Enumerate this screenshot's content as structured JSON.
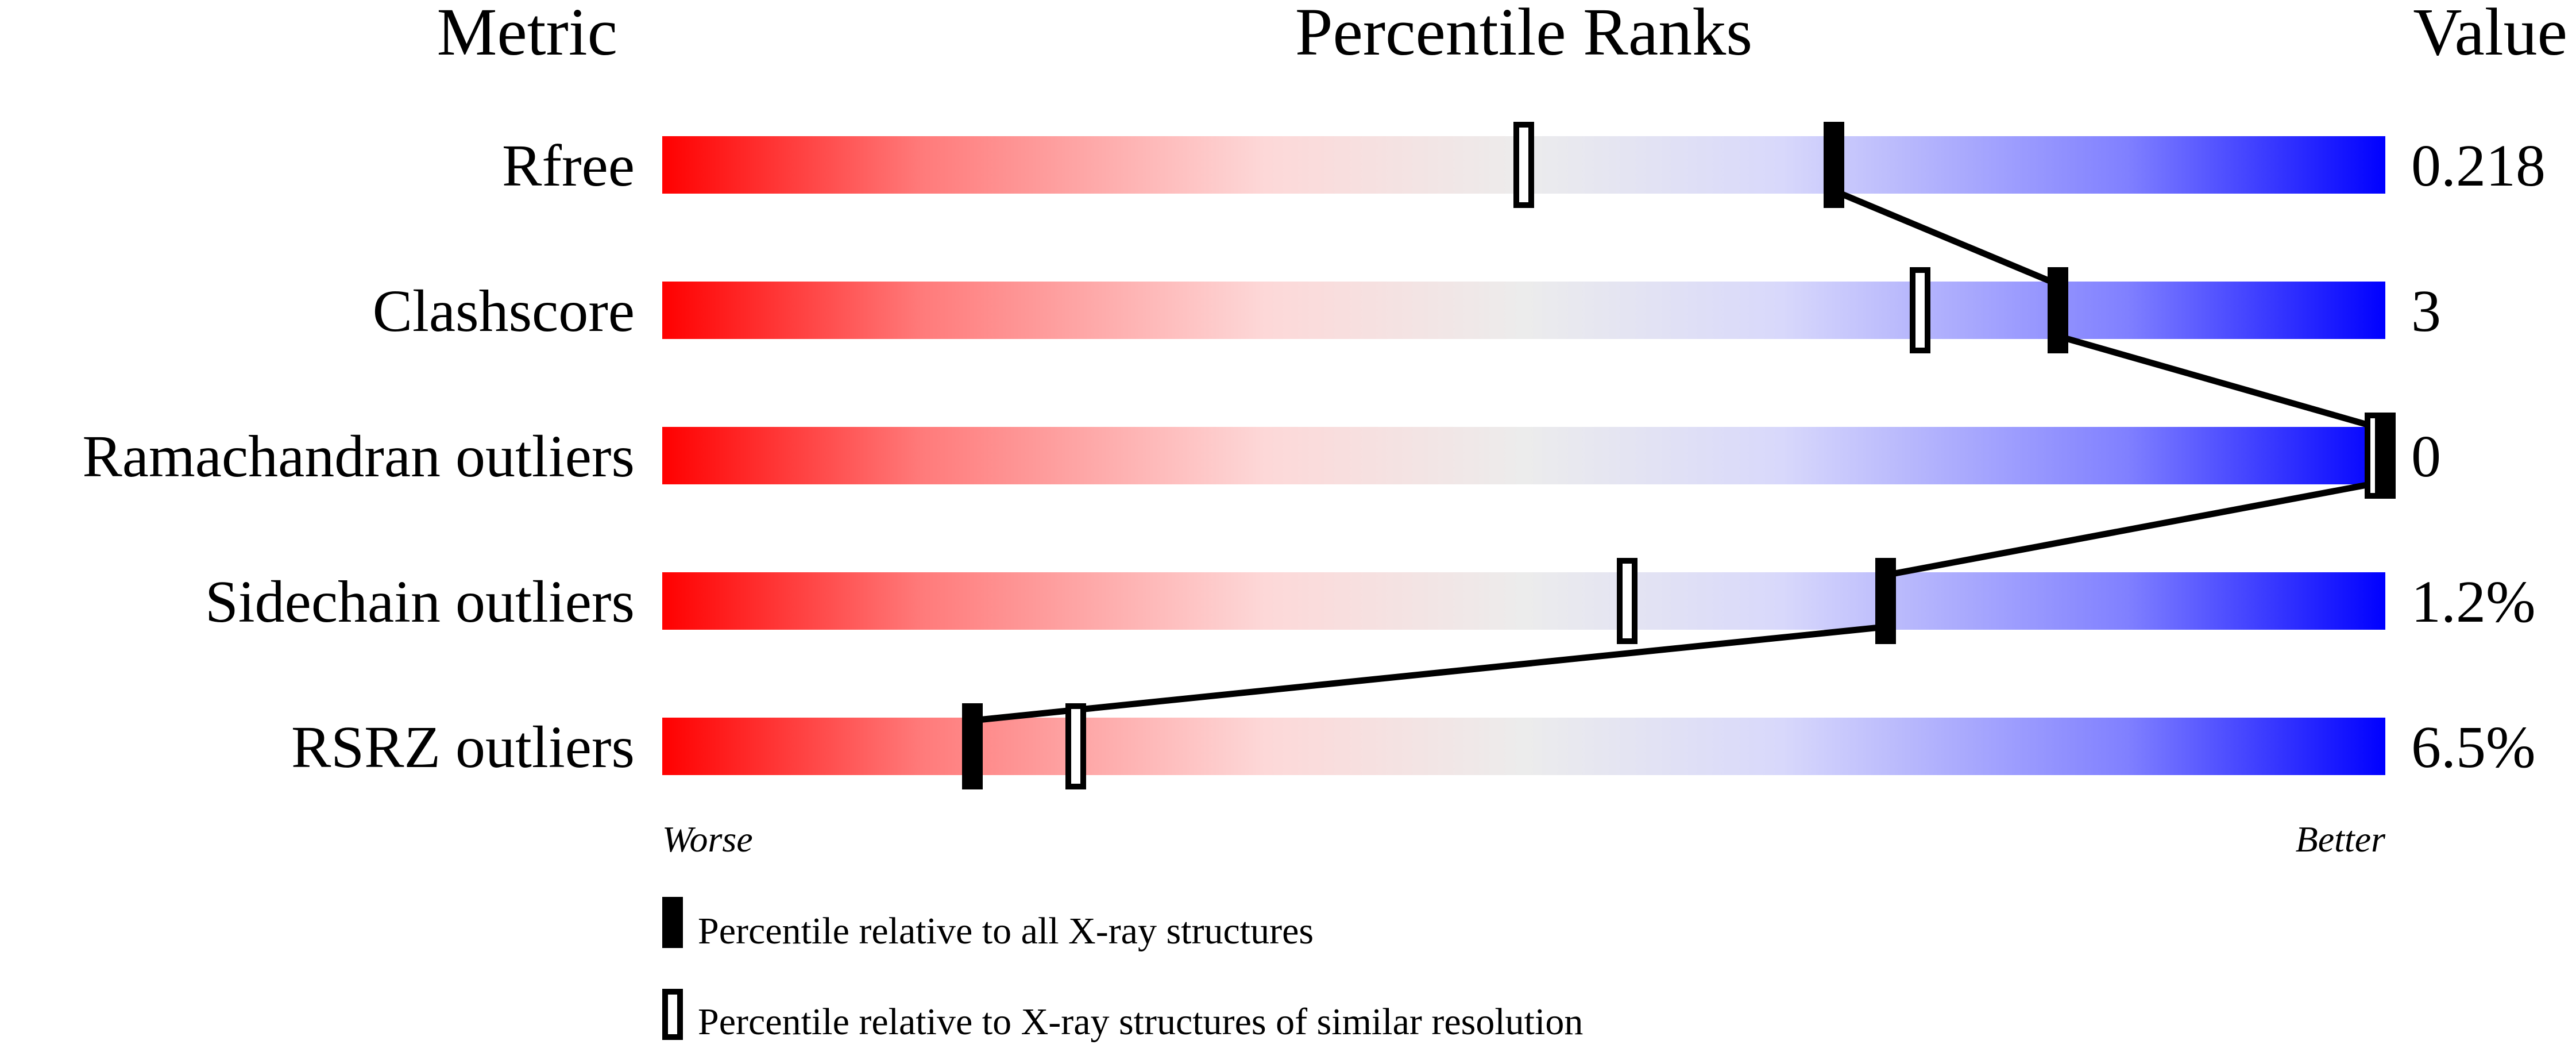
{
  "chart_data": {
    "type": "percentile-slider",
    "headers": {
      "metric": "Metric",
      "ranks": "Percentile Ranks",
      "value": "Value"
    },
    "xlim": [
      0,
      100
    ],
    "axis_labels": {
      "left": "Worse",
      "right": "Better"
    },
    "gradient_colors": [
      "#ff0000",
      "#ff7a7a",
      "#fdd8d8",
      "#ececec",
      "#d8d8fb",
      "#8080ff",
      "#0000ff"
    ],
    "rows": [
      {
        "metric": "Rfree",
        "value": "0.218",
        "percentile_all": 68,
        "percentile_similar": 50
      },
      {
        "metric": "Clashscore",
        "value": "3",
        "percentile_all": 81,
        "percentile_similar": 73
      },
      {
        "metric": "Ramachandran outliers",
        "value": "0",
        "percentile_all": 100,
        "percentile_similar": 100
      },
      {
        "metric": "Sidechain outliers",
        "value": "1.2%",
        "percentile_all": 71,
        "percentile_similar": 56
      },
      {
        "metric": "RSRZ outliers",
        "value": "6.5%",
        "percentile_all": 18,
        "percentile_similar": 24
      }
    ],
    "legend": [
      {
        "marker": "filled",
        "label": "Percentile relative to all X-ray structures"
      },
      {
        "marker": "hollow",
        "label": "Percentile relative to X-ray structures of similar resolution"
      }
    ]
  }
}
